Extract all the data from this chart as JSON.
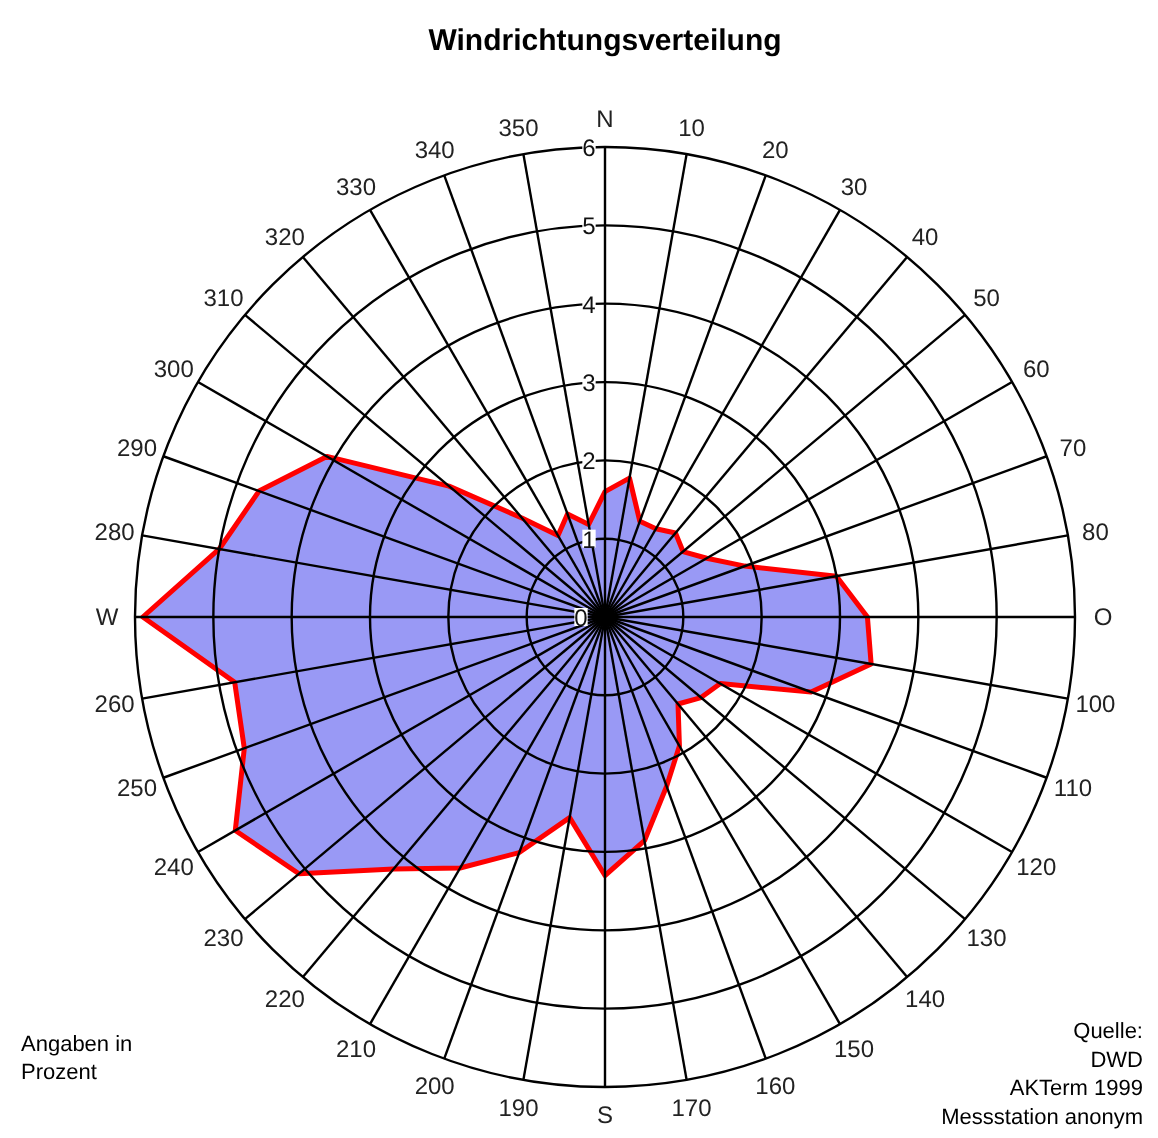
{
  "chart_data": {
    "type": "radar",
    "title": "Windrichtungsverteilung",
    "categories": [
      "N",
      "10",
      "20",
      "30",
      "40",
      "50",
      "60",
      "70",
      "80",
      "O",
      "100",
      "110",
      "120",
      "130",
      "140",
      "150",
      "160",
      "170",
      "S",
      "190",
      "200",
      "210",
      "220",
      "230",
      "240",
      "250",
      "260",
      "W",
      "280",
      "290",
      "300",
      "310",
      "320",
      "330",
      "340",
      "350"
    ],
    "series": [
      {
        "color": "#9999f5",
        "values": [
          1.6,
          1.8,
          1.3,
          1.3,
          1.4,
          1.3,
          1.5,
          1.9,
          3.0,
          3.35,
          3.45,
          2.8,
          1.7,
          1.6,
          1.45,
          1.9,
          2.3,
          2.9,
          3.3,
          2.6,
          3.2,
          3.7,
          4.2,
          5.1,
          5.45,
          4.9,
          4.8,
          5.9,
          5.0,
          4.7,
          4.1,
          2.6,
          1.65,
          1.2,
          1.4,
          1.2
        ]
      }
    ],
    "ylim": [
      0,
      6
    ],
    "yticks": [
      0,
      1,
      2,
      3,
      4,
      5,
      6
    ],
    "grid": true,
    "annotations": [
      "Angaben in\nProzent",
      "Quelle:\nDWD\nAKTerm 1999\nMessstation anonym"
    ]
  }
}
